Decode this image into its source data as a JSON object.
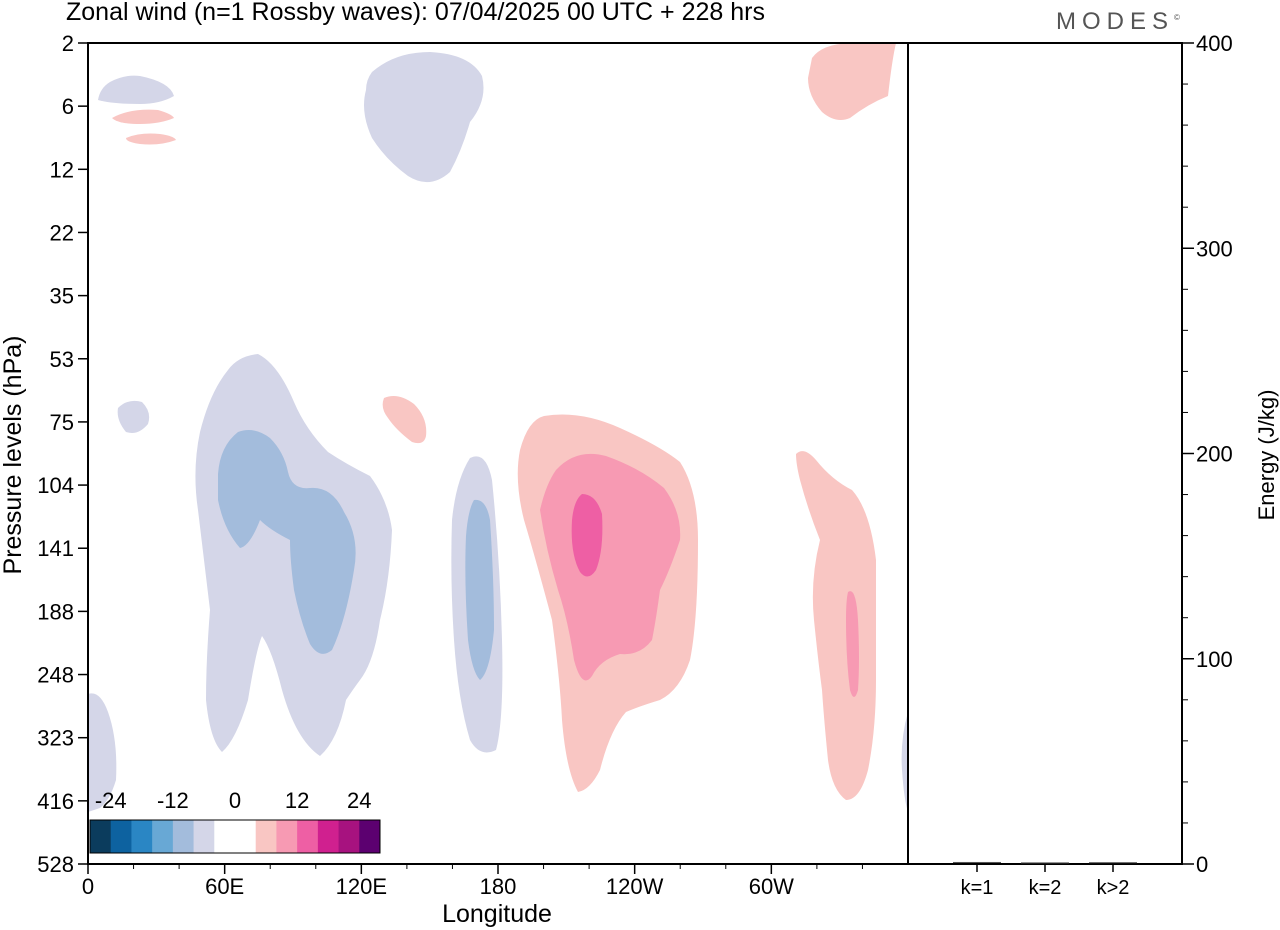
{
  "header": {
    "title": "Zonal wind (n=1 Rossby waves):  07/04/2025  00 UTC  + 228 hrs",
    "logo_text": "MODES",
    "logo_mark": "©"
  },
  "chart_data": [
    {
      "type": "heatmap",
      "title": "Zonal wind (n=1 Rossby waves):  07/04/2025  00 UTC  + 228 hrs",
      "xlabel": "Longitude",
      "ylabel": "Pressure levels (hPa)",
      "x_ticks": [
        "0",
        "60E",
        "120E",
        "180",
        "120W",
        "60W"
      ],
      "y_ticks": [
        "2",
        "6",
        "12",
        "22",
        "35",
        "53",
        "75",
        "104",
        "141",
        "188",
        "248",
        "323",
        "416",
        "528"
      ],
      "colorbar": {
        "tick_labels": [
          "-24",
          "-12",
          "0",
          "12",
          "24"
        ],
        "colors": [
          "#0b3c5d",
          "#0d62a0",
          "#2a86c4",
          "#68a8d5",
          "#a3bcdc",
          "#d4d6e8",
          "#ffffff",
          "#ffffff",
          "#f9c6c3",
          "#f79ab3",
          "#ee5fa4",
          "#d0208f",
          "#a7127f",
          "#5c0070"
        ]
      },
      "features": [
        {
          "sign": "positive",
          "level": 1,
          "lon": 20,
          "pressure_hPa": 5
        },
        {
          "sign": "negative",
          "level": 1,
          "lon": 148,
          "pressure_hPa": 8
        },
        {
          "sign": "positive",
          "level": 1,
          "lon": 338,
          "pressure_hPa": 4
        },
        {
          "sign": "negative",
          "level": 2,
          "lon": 82,
          "pressure_hPa": 141
        },
        {
          "sign": "negative",
          "level": 2,
          "lon": 172,
          "pressure_hPa": 180
        },
        {
          "sign": "positive",
          "level": 3,
          "lon": 219,
          "pressure_hPa": 135
        },
        {
          "sign": "positive",
          "level": 2,
          "lon": 337,
          "pressure_hPa": 200
        }
      ]
    },
    {
      "type": "bar",
      "ylabel": "Energy (J/kg)",
      "categories": [
        "k=1",
        "k=2",
        "k>2"
      ],
      "values": [
        0.5,
        0.3,
        0.4
      ],
      "ylim": [
        0,
        400
      ],
      "y_ticks": [
        "0",
        "100",
        "200",
        "300",
        "400"
      ]
    }
  ]
}
